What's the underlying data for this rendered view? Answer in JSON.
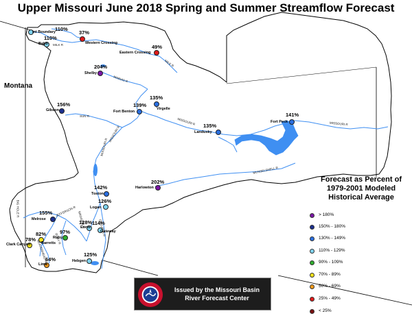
{
  "title": "Upper Missouri June 2018 Spring and Summer Streamflow Forecast",
  "state_label": "Montana",
  "legend": {
    "title_lines": [
      "Forecast as Percent of",
      "1979-2001 Modeled",
      "Historical Average"
    ],
    "items": [
      {
        "label": "> 180%",
        "color": "#7b16a6"
      },
      {
        "label": "150% - 180%",
        "color": "#1b2f8f"
      },
      {
        "label": "130% - 149%",
        "color": "#2a6fe0"
      },
      {
        "label": "110% - 129%",
        "color": "#7fd3f0"
      },
      {
        "label": "90% - 109%",
        "color": "#2fae2f"
      },
      {
        "label": "70% - 89%",
        "color": "#f2e21b"
      },
      {
        "label": "50% - 69%",
        "color": "#f29a1b"
      },
      {
        "label": "25% - 49%",
        "color": "#e01b1b"
      },
      {
        "label": "< 25%",
        "color": "#7a1010"
      }
    ]
  },
  "issued_by": {
    "line1": "Issued by the Missouri Basin",
    "line2": "River Forecast Center",
    "logo_icon": "nws-logo-icon"
  },
  "forecast_points": [
    {
      "id": "int-boundary",
      "site": "Int Boundary",
      "pct": "110%",
      "color": "#7fd3f0"
    },
    {
      "id": "babb",
      "site": "Babb",
      "pct": "110%",
      "color": "#7fd3f0"
    },
    {
      "id": "western-crossing",
      "site": "Western Crossing",
      "pct": "37%",
      "color": "#e01b1b"
    },
    {
      "id": "eastern-crossing",
      "site": "Eastern Crossing",
      "pct": "49%",
      "color": "#e01b1b"
    },
    {
      "id": "shelby",
      "site": "Shelby",
      "pct": "204%",
      "color": "#7b16a6"
    },
    {
      "id": "gibson",
      "site": "Gibson",
      "pct": "156%",
      "color": "#1b2f8f"
    },
    {
      "id": "fort-benton",
      "site": "Fort Benton",
      "pct": "139%",
      "color": "#2a6fe0"
    },
    {
      "id": "virgelle",
      "site": "Virgelle",
      "pct": "135%",
      "color": "#2a6fe0"
    },
    {
      "id": "landusky",
      "site": "Landusky",
      "pct": "135%",
      "color": "#2a6fe0"
    },
    {
      "id": "fort-peck",
      "site": "Fort Peck",
      "pct": "141%",
      "color": "#2a6fe0"
    },
    {
      "id": "harlowton",
      "site": "Harlowton",
      "pct": "202%",
      "color": "#7b16a6"
    },
    {
      "id": "toston",
      "site": "Toston",
      "pct": "142%",
      "color": "#2a6fe0"
    },
    {
      "id": "logan",
      "site": "Logan",
      "pct": "126%",
      "color": "#7fd3f0"
    },
    {
      "id": "melrose",
      "site": "Melrose",
      "pct": "155%",
      "color": "#1b2f8f"
    },
    {
      "id": "ennis",
      "site": "Ennis",
      "pct": "128%",
      "color": "#7fd3f0"
    },
    {
      "id": "gateway",
      "site": "Gateway",
      "pct": "114%",
      "color": "#7fd3f0"
    },
    {
      "id": "ruby",
      "site": "Ruby",
      "pct": "97%",
      "color": "#2fae2f"
    },
    {
      "id": "barretts",
      "site": "Barretts",
      "pct": "82%",
      "color": "#f2e21b"
    },
    {
      "id": "clark-canyon",
      "site": "Clark Canyon",
      "pct": "78%",
      "color": "#f2e21b"
    },
    {
      "id": "lima",
      "site": "Lima",
      "pct": "64%",
      "color": "#f29a1b"
    },
    {
      "id": "hebgen",
      "site": "Hebgen",
      "pct": "125%",
      "color": "#7fd3f0"
    }
  ],
  "river_labels": [
    "MILK R",
    "MILK R",
    "MARIAS R",
    "SUN R",
    "MISSOURI R",
    "MISSOURI R",
    "MISSOURI R",
    "MUSSELSHELL R",
    "BIG HOLE R",
    "JEFFERSON R",
    "MADISON R",
    "GALLATIN R",
    "RUBY R",
    "BEAVERHEAD R",
    "MISSOURI R"
  ]
}
